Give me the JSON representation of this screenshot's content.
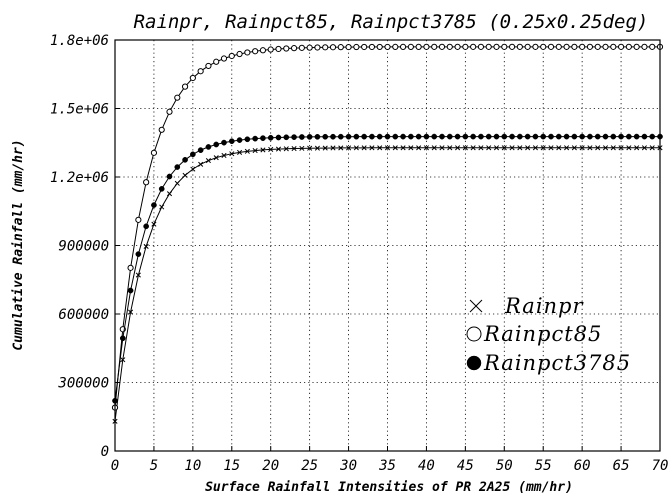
{
  "chart_data": {
    "type": "line",
    "title": "Rainpr, Rainpct85, Rainpct3785 (0.25x0.25deg)",
    "xlabel": "Surface Rainfall Intensities of PR 2A25 (mm/hr)",
    "ylabel": "Cumulative Rainfall (mm/hr)",
    "xlim": [
      0,
      70
    ],
    "ylim": [
      0,
      1800000
    ],
    "x_ticks": [
      "0",
      "5",
      "10",
      "15",
      "20",
      "25",
      "30",
      "35",
      "40",
      "45",
      "50",
      "55",
      "60",
      "65",
      "70"
    ],
    "y_ticks": [
      "0",
      "300000",
      "600000",
      "900000",
      "1.2e+06",
      "1.5e+06",
      "1.8e+06"
    ],
    "grid": true,
    "legend_position": "right",
    "series": [
      {
        "name": "Rainpr",
        "marker": "cross",
        "start": 130000,
        "max": 1328000,
        "rate": 0.255
      },
      {
        "name": "Rainpct85",
        "marker": "open-circle",
        "start": 190000,
        "max": 1770000,
        "rate": 0.245
      },
      {
        "name": "Rainpct3785",
        "marker": "filled-circle",
        "start": 220000,
        "max": 1377000,
        "rate": 0.27
      }
    ]
  }
}
